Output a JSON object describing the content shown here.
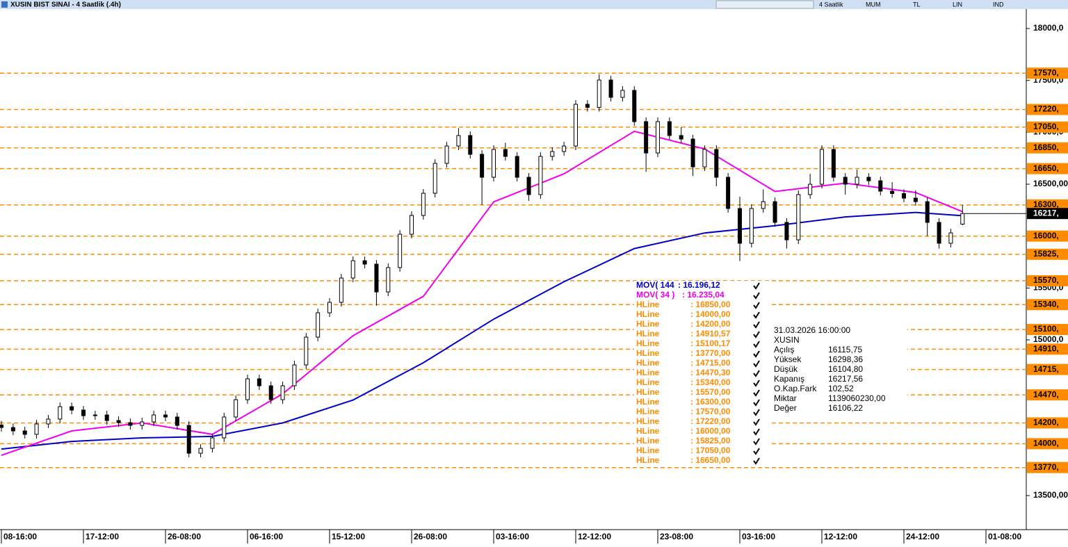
{
  "window": {
    "title": "XUSIN BIST SINAI - 4 Saatlik (.4h)",
    "toolbar": [
      "4 Saatlik",
      "MUM",
      "TL",
      "LIN",
      "IND"
    ]
  },
  "chart_data": {
    "type": "candlestick",
    "categories": [
      "08-16:00",
      null,
      null,
      null,
      null,
      null,
      null,
      "17-12:00",
      null,
      null,
      null,
      null,
      null,
      null,
      "26-08:00",
      null,
      null,
      null,
      null,
      null,
      null,
      "06-16:00",
      null,
      null,
      null,
      null,
      null,
      null,
      "15-12:00",
      null,
      null,
      null,
      null,
      null,
      null,
      "26-08:00",
      null,
      null,
      null,
      null,
      null,
      null,
      "03-16:00",
      null,
      null,
      null,
      null,
      null,
      null,
      "12-12:00",
      null,
      null,
      null,
      null,
      null,
      null,
      "23-08:00",
      null,
      null,
      null,
      null,
      null,
      null,
      "03-16:00",
      null,
      null,
      null,
      null,
      null,
      null,
      "12-12:00",
      null,
      null,
      null,
      null,
      null,
      null,
      "24-12:00",
      null,
      null,
      null,
      null,
      null,
      null,
      "01-08:00"
    ],
    "open": [
      14180,
      14156,
      14123,
      14090,
      14190,
      14237,
      14357,
      14324,
      14270,
      14277,
      14223,
      14203,
      14176,
      14210,
      14277,
      14257,
      14176,
      13908,
      13955,
      14056,
      14257,
      14424,
      14625,
      14558,
      14424,
      14558,
      14759,
      15027,
      15261,
      15362,
      15596,
      15763,
      15730,
      15462,
      15697,
      16018,
      16199,
      16413,
      16701,
      16868,
      16969,
      16788,
      16567,
      16835,
      16768,
      16567,
      16400,
      16768,
      16815,
      16868,
      17270,
      17240,
      17504,
      17337,
      17404,
      17103,
      16801,
      17103,
      16969,
      16935,
      16667,
      16835,
      16567,
      16266,
      15931,
      16266,
      16332,
      16132,
      15964,
      16400,
      16500,
      16835,
      16567,
      16500,
      16567,
      16533,
      16433,
      16410,
      16366,
      16332,
      16132,
      15931,
      16115.75,
      null,
      null
    ],
    "high": [
      14220,
      14196,
      14163,
      14230,
      14277,
      14397,
      14397,
      14364,
      14317,
      14317,
      14263,
      14243,
      14250,
      14317,
      14317,
      14297,
      14216,
      13995,
      14096,
      14297,
      14464,
      14665,
      14665,
      14598,
      14598,
      14799,
      15067,
      15301,
      15402,
      15636,
      15803,
      15803,
      15770,
      15737,
      16058,
      16239,
      16453,
      16741,
      16908,
      17040,
      17009,
      16828,
      16875,
      16900,
      16808,
      16607,
      16808,
      16855,
      16908,
      17310,
      17310,
      17560,
      17544,
      17444,
      17444,
      17143,
      17143,
      17143,
      17050,
      16975,
      16875,
      16875,
      16607,
      16380,
      16306,
      16450,
      16372,
      16172,
      16440,
      16600,
      16875,
      16875,
      16607,
      16640,
      16607,
      16573,
      16520,
      16450,
      16440,
      16372,
      16172,
      16071,
      16298.36,
      null,
      null
    ],
    "low": [
      14116,
      14083,
      14050,
      14050,
      14150,
      14197,
      14284,
      14230,
      14230,
      14183,
      14163,
      14136,
      14136,
      14170,
      14217,
      14136,
      13868,
      13868,
      13915,
      14016,
      14217,
      14384,
      14518,
      14384,
      14384,
      14518,
      14719,
      14987,
      15221,
      15322,
      15556,
      15690,
      15330,
      15422,
      15657,
      15978,
      16159,
      16373,
      16661,
      16828,
      16748,
      16300,
      16527,
      16728,
      16527,
      16340,
      16360,
      16728,
      16775,
      16828,
      17200,
      17200,
      17297,
      17297,
      17063,
      16620,
      16761,
      16929,
      16895,
      16580,
      16627,
      16480,
      16226,
      15760,
      15891,
      16226,
      16092,
      15880,
      15924,
      16360,
      16460,
      16527,
      16400,
      16460,
      16493,
      16393,
      16370,
      16326,
      16292,
      16000,
      15880,
      15891,
      16104.8,
      null,
      null
    ],
    "close": [
      14156,
      14123,
      14090,
      14190,
      14237,
      14357,
      14324,
      14270,
      14277,
      14223,
      14203,
      14176,
      14210,
      14277,
      14257,
      14176,
      13908,
      13955,
      14056,
      14257,
      14424,
      14625,
      14558,
      14424,
      14558,
      14759,
      15027,
      15261,
      15362,
      15596,
      15763,
      15730,
      15462,
      15697,
      16018,
      16199,
      16413,
      16701,
      16868,
      16969,
      16788,
      16567,
      16835,
      16768,
      16567,
      16400,
      16768,
      16815,
      16868,
      17270,
      17240,
      17504,
      17337,
      17404,
      17103,
      16801,
      17103,
      16969,
      16935,
      16667,
      16835,
      16567,
      16266,
      15931,
      16266,
      16332,
      16132,
      15964,
      16400,
      16500,
      16835,
      16567,
      16500,
      16567,
      16533,
      16433,
      16410,
      16366,
      16332,
      16132,
      15931,
      16031,
      16217.56,
      null,
      null
    ],
    "last_label": "16217,",
    "series": [
      {
        "name": "MOV( 144",
        "legend_value": ": 16.196,12",
        "color": "#0000cc",
        "x": [
          0,
          6,
          12,
          18,
          24,
          30,
          36,
          42,
          48,
          54,
          60,
          66,
          72,
          78,
          82
        ],
        "values": [
          13948,
          14022,
          14056,
          14070,
          14200,
          14420,
          14780,
          15200,
          15560,
          15880,
          16030,
          16100,
          16185,
          16228,
          16196.12
        ]
      },
      {
        "name": "MOV( 34 )",
        "legend_value": ": 16.235,04",
        "color": "#ee00ee",
        "x": [
          0,
          6,
          12,
          18,
          24,
          30,
          36,
          42,
          48,
          54,
          60,
          66,
          72,
          78,
          82
        ],
        "values": [
          13888,
          14123,
          14200,
          14090,
          14480,
          15040,
          15420,
          16330,
          16600,
          17010,
          16840,
          16430,
          16510,
          16420,
          16235.04
        ]
      }
    ],
    "hline_color": "#ff8c00",
    "hlines": [
      {
        "name": "HLine",
        "value": 16850,
        "label": "16850,",
        "legend_value": ": 16850,00"
      },
      {
        "name": "HLine",
        "value": 14000,
        "label": "14000,",
        "legend_value": ": 14000,00"
      },
      {
        "name": "HLine",
        "value": 14200,
        "label": "14200,",
        "legend_value": ": 14200,00"
      },
      {
        "name": "HLine",
        "value": 14910.57,
        "label": "14910,",
        "legend_value": ": 14910,57"
      },
      {
        "name": "HLine",
        "value": 15100.17,
        "label": "15100,",
        "legend_value": ": 15100,17"
      },
      {
        "name": "HLine",
        "value": 13770,
        "label": "13770,",
        "legend_value": ": 13770,00"
      },
      {
        "name": "HLine",
        "value": 14715,
        "label": "14715,",
        "legend_value": ": 14715,00"
      },
      {
        "name": "HLine",
        "value": 14470.3,
        "label": "14470,",
        "legend_value": ": 14470,30"
      },
      {
        "name": "HLine",
        "value": 15340,
        "label": "15340,",
        "legend_value": ": 15340,00"
      },
      {
        "name": "HLine",
        "value": 15570,
        "label": "15570,",
        "legend_value": ": 15570,00"
      },
      {
        "name": "HLine",
        "value": 16300,
        "label": "16300,",
        "legend_value": ": 16300,00"
      },
      {
        "name": "HLine",
        "value": 17570,
        "label": "17570,",
        "legend_value": ": 17570,00"
      },
      {
        "name": "HLine",
        "value": 17220,
        "label": "17220,",
        "legend_value": ": 17220,00"
      },
      {
        "name": "HLine",
        "value": 16000,
        "label": "16000,",
        "legend_value": ": 16000,00"
      },
      {
        "name": "HLine",
        "value": 15825,
        "label": "15825,",
        "legend_value": ": 15825,00"
      },
      {
        "name": "HLine",
        "value": 17050,
        "label": "17050,",
        "legend_value": ": 17050,00"
      },
      {
        "name": "HLine",
        "value": 16650,
        "label": "16650,",
        "legend_value": ": 16650,00"
      }
    ],
    "ylim": [
      13172,
      18181
    ],
    "yticks": [
      {
        "value": 18000,
        "label": "18000,0"
      },
      {
        "value": 17500,
        "label": "17500,0"
      },
      {
        "value": 17000,
        "label": "17000,0"
      },
      {
        "value": 16500,
        "label": "16500,00"
      },
      {
        "value": 15500,
        "label": "15500,0"
      },
      {
        "value": 15000,
        "label": "15000,0"
      },
      {
        "value": 13500,
        "label": "13500,00"
      }
    ],
    "info": {
      "datetime": "31.03.2026  16:00:00",
      "symbol": "XUSIN",
      "rows": [
        [
          "Açılış",
          "16115,75"
        ],
        [
          "Yüksek",
          "16298,36"
        ],
        [
          "Düşük",
          "16104,80"
        ],
        [
          "Kapanış",
          "16217,56"
        ],
        [
          "O.Kap.Fark",
          "102,52"
        ],
        [
          "Miktar",
          "1139060230,00"
        ],
        [
          "Değer",
          "16106,22"
        ]
      ]
    }
  }
}
